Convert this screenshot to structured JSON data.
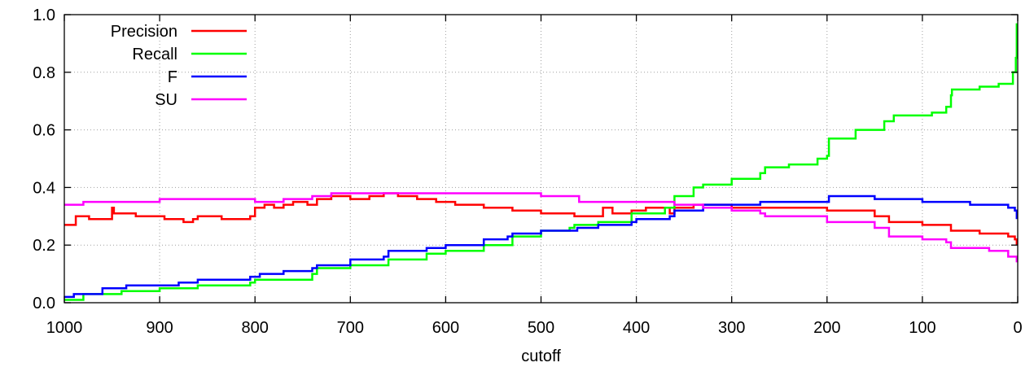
{
  "chart_data": {
    "type": "line",
    "title": "",
    "xlabel": "cutoff",
    "ylabel": "",
    "xlim": [
      1000,
      0
    ],
    "ylim": [
      0,
      1
    ],
    "x_reversed": true,
    "grid": true,
    "legend_position": "top-left",
    "xticks": [
      "1000",
      "900",
      "800",
      "700",
      "600",
      "500",
      "400",
      "300",
      "200",
      "100",
      "0"
    ],
    "yticks": [
      "0.0",
      "0.2",
      "0.4",
      "0.6",
      "0.8",
      "1.0"
    ],
    "series": [
      {
        "name": "Precision",
        "color": "#ff0000",
        "points": [
          [
            1000,
            0.27
          ],
          [
            990,
            0.27
          ],
          [
            988,
            0.3
          ],
          [
            975,
            0.3
          ],
          [
            974,
            0.29
          ],
          [
            955,
            0.29
          ],
          [
            950,
            0.33
          ],
          [
            948,
            0.31
          ],
          [
            925,
            0.3
          ],
          [
            895,
            0.29
          ],
          [
            875,
            0.28
          ],
          [
            865,
            0.29
          ],
          [
            860,
            0.3
          ],
          [
            840,
            0.3
          ],
          [
            835,
            0.29
          ],
          [
            805,
            0.3
          ],
          [
            800,
            0.33
          ],
          [
            790,
            0.34
          ],
          [
            780,
            0.33
          ],
          [
            770,
            0.34
          ],
          [
            760,
            0.35
          ],
          [
            745,
            0.34
          ],
          [
            735,
            0.36
          ],
          [
            720,
            0.37
          ],
          [
            700,
            0.36
          ],
          [
            680,
            0.37
          ],
          [
            665,
            0.38
          ],
          [
            650,
            0.37
          ],
          [
            630,
            0.36
          ],
          [
            610,
            0.35
          ],
          [
            590,
            0.34
          ],
          [
            560,
            0.33
          ],
          [
            530,
            0.32
          ],
          [
            500,
            0.31
          ],
          [
            465,
            0.3
          ],
          [
            440,
            0.3
          ],
          [
            435,
            0.33
          ],
          [
            425,
            0.31
          ],
          [
            405,
            0.32
          ],
          [
            390,
            0.33
          ],
          [
            365,
            0.31
          ],
          [
            360,
            0.33
          ],
          [
            340,
            0.34
          ],
          [
            320,
            0.34
          ],
          [
            300,
            0.33
          ],
          [
            250,
            0.33
          ],
          [
            200,
            0.32
          ],
          [
            150,
            0.3
          ],
          [
            135,
            0.28
          ],
          [
            100,
            0.27
          ],
          [
            70,
            0.25
          ],
          [
            40,
            0.24
          ],
          [
            10,
            0.23
          ],
          [
            3,
            0.22
          ],
          [
            1,
            0.2
          ]
        ]
      },
      {
        "name": "Recall",
        "color": "#00ff00",
        "points": [
          [
            1000,
            0.01
          ],
          [
            980,
            0.03
          ],
          [
            940,
            0.04
          ],
          [
            900,
            0.05
          ],
          [
            860,
            0.06
          ],
          [
            805,
            0.07
          ],
          [
            800,
            0.08
          ],
          [
            740,
            0.1
          ],
          [
            735,
            0.12
          ],
          [
            700,
            0.13
          ],
          [
            665,
            0.13
          ],
          [
            660,
            0.15
          ],
          [
            620,
            0.17
          ],
          [
            600,
            0.18
          ],
          [
            560,
            0.2
          ],
          [
            530,
            0.23
          ],
          [
            500,
            0.25
          ],
          [
            470,
            0.26
          ],
          [
            465,
            0.27
          ],
          [
            440,
            0.28
          ],
          [
            405,
            0.31
          ],
          [
            370,
            0.33
          ],
          [
            360,
            0.37
          ],
          [
            340,
            0.4
          ],
          [
            330,
            0.41
          ],
          [
            300,
            0.43
          ],
          [
            270,
            0.45
          ],
          [
            265,
            0.47
          ],
          [
            240,
            0.48
          ],
          [
            210,
            0.5
          ],
          [
            200,
            0.51
          ],
          [
            198,
            0.57
          ],
          [
            170,
            0.6
          ],
          [
            140,
            0.63
          ],
          [
            130,
            0.65
          ],
          [
            90,
            0.66
          ],
          [
            75,
            0.68
          ],
          [
            70,
            0.72
          ],
          [
            69,
            0.74
          ],
          [
            40,
            0.75
          ],
          [
            20,
            0.76
          ],
          [
            5,
            0.8
          ],
          [
            2,
            0.85
          ],
          [
            1,
            0.97
          ]
        ]
      },
      {
        "name": "F",
        "color": "#0000ff",
        "points": [
          [
            1000,
            0.02
          ],
          [
            990,
            0.03
          ],
          [
            960,
            0.05
          ],
          [
            940,
            0.05
          ],
          [
            935,
            0.06
          ],
          [
            880,
            0.07
          ],
          [
            860,
            0.08
          ],
          [
            805,
            0.09
          ],
          [
            795,
            0.1
          ],
          [
            770,
            0.11
          ],
          [
            740,
            0.12
          ],
          [
            735,
            0.13
          ],
          [
            700,
            0.15
          ],
          [
            665,
            0.16
          ],
          [
            660,
            0.18
          ],
          [
            620,
            0.19
          ],
          [
            600,
            0.2
          ],
          [
            560,
            0.22
          ],
          [
            535,
            0.23
          ],
          [
            530,
            0.24
          ],
          [
            500,
            0.25
          ],
          [
            465,
            0.25
          ],
          [
            462,
            0.26
          ],
          [
            440,
            0.27
          ],
          [
            405,
            0.28
          ],
          [
            400,
            0.29
          ],
          [
            365,
            0.3
          ],
          [
            360,
            0.32
          ],
          [
            335,
            0.32
          ],
          [
            330,
            0.34
          ],
          [
            300,
            0.34
          ],
          [
            270,
            0.35
          ],
          [
            200,
            0.35
          ],
          [
            198,
            0.37
          ],
          [
            170,
            0.37
          ],
          [
            150,
            0.36
          ],
          [
            100,
            0.35
          ],
          [
            50,
            0.34
          ],
          [
            10,
            0.33
          ],
          [
            3,
            0.32
          ],
          [
            1,
            0.29
          ]
        ]
      },
      {
        "name": "SU",
        "color": "#ff00ff",
        "points": [
          [
            1000,
            0.34
          ],
          [
            980,
            0.35
          ],
          [
            900,
            0.36
          ],
          [
            805,
            0.36
          ],
          [
            800,
            0.35
          ],
          [
            770,
            0.36
          ],
          [
            740,
            0.37
          ],
          [
            730,
            0.37
          ],
          [
            720,
            0.38
          ],
          [
            665,
            0.38
          ],
          [
            600,
            0.38
          ],
          [
            500,
            0.37
          ],
          [
            465,
            0.37
          ],
          [
            460,
            0.35
          ],
          [
            400,
            0.35
          ],
          [
            360,
            0.34
          ],
          [
            330,
            0.33
          ],
          [
            300,
            0.32
          ],
          [
            270,
            0.31
          ],
          [
            265,
            0.3
          ],
          [
            200,
            0.28
          ],
          [
            150,
            0.26
          ],
          [
            135,
            0.23
          ],
          [
            100,
            0.22
          ],
          [
            75,
            0.21
          ],
          [
            70,
            0.19
          ],
          [
            30,
            0.18
          ],
          [
            10,
            0.16
          ],
          [
            1,
            0.14
          ]
        ]
      }
    ]
  }
}
